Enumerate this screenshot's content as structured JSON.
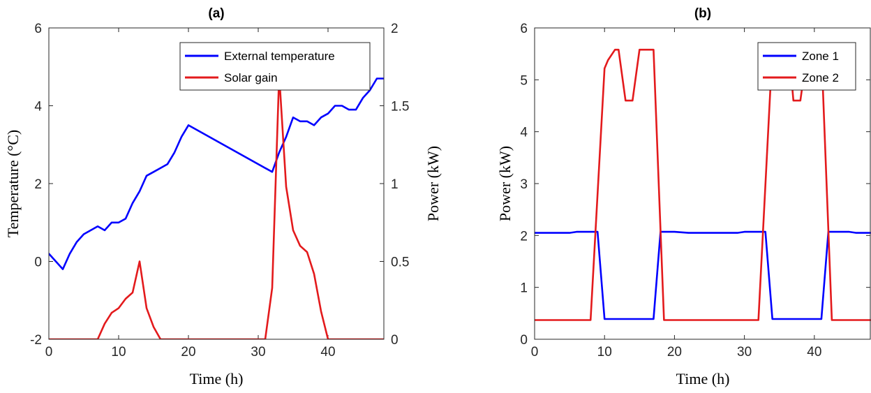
{
  "chart_data": [
    {
      "type": "line",
      "title": "(a)",
      "xlabel": "Time (h)",
      "ylabel_left": "Temperature (°C)",
      "ylabel_right": "Power (kW)",
      "xlim": [
        0,
        48
      ],
      "ylim_left": [
        -2,
        6
      ],
      "ylim_right": [
        0,
        2
      ],
      "xticks": [
        "0",
        "10",
        "20",
        "30",
        "40"
      ],
      "yticks_left": [
        "-2",
        "0",
        "2",
        "4",
        "6"
      ],
      "yticks_right": [
        "0",
        "0.5",
        "1",
        "1.5",
        "2"
      ],
      "legend_position": "top-right",
      "series": [
        {
          "name": "External temperature",
          "axis": "left",
          "color": "#0000ff",
          "x": [
            0,
            1,
            2,
            3,
            4,
            5,
            6,
            7,
            8,
            9,
            10,
            11,
            12,
            13,
            14,
            15,
            16,
            17,
            18,
            19,
            20,
            32,
            33,
            34,
            35,
            36,
            37,
            38,
            39,
            40,
            41,
            42,
            43,
            44,
            45,
            46,
            47,
            48
          ],
          "y": [
            0.2,
            0.0,
            -0.2,
            0.2,
            0.5,
            0.7,
            0.8,
            0.9,
            0.8,
            1.0,
            1.0,
            1.1,
            1.5,
            1.8,
            2.2,
            2.3,
            2.4,
            2.5,
            2.8,
            3.2,
            3.5,
            2.3,
            2.8,
            3.2,
            3.7,
            3.6,
            3.6,
            3.5,
            3.7,
            3.8,
            4.0,
            4.0,
            3.9,
            3.9,
            4.2,
            4.4,
            4.7,
            4.7
          ]
        },
        {
          "name": "Solar gain",
          "axis": "right",
          "color": "#e31a1c",
          "x": [
            0,
            7,
            8,
            9,
            10,
            11,
            12,
            13,
            14,
            15,
            16,
            31,
            32,
            33,
            34,
            35,
            36,
            37,
            38,
            39,
            40,
            48
          ],
          "y": [
            0,
            0,
            0.1,
            0.17,
            0.2,
            0.26,
            0.3,
            0.5,
            0.2,
            0.08,
            0,
            0,
            0.33,
            1.7,
            0.98,
            0.7,
            0.6,
            0.56,
            0.42,
            0.18,
            0,
            0
          ]
        }
      ]
    },
    {
      "type": "line",
      "title": "(b)",
      "xlabel": "Time (h)",
      "ylabel": "Power (kW)",
      "xlim": [
        0,
        48
      ],
      "ylim": [
        0,
        6
      ],
      "xticks": [
        "0",
        "10",
        "20",
        "30",
        "40"
      ],
      "yticks": [
        "0",
        "1",
        "2",
        "3",
        "4",
        "5",
        "6"
      ],
      "legend_position": "top-right",
      "series": [
        {
          "name": "Zone 1",
          "color": "#0000ff",
          "x": [
            0,
            5,
            6,
            9,
            10,
            17,
            18,
            20,
            22,
            29,
            30,
            33,
            34,
            41,
            42,
            45,
            46,
            48
          ],
          "y": [
            2.05,
            2.05,
            2.07,
            2.07,
            0.39,
            0.39,
            2.07,
            2.07,
            2.05,
            2.05,
            2.07,
            2.07,
            0.39,
            0.39,
            2.07,
            2.07,
            2.05,
            2.05
          ]
        },
        {
          "name": "Zone 2",
          "color": "#e31a1c",
          "x": [
            0,
            8,
            10,
            10.5,
            11.5,
            12,
            13,
            14,
            15,
            16,
            17,
            18.5,
            32,
            34,
            35.5,
            36.5,
            37,
            38,
            39,
            41,
            42.5,
            48
          ],
          "y": [
            0.37,
            0.37,
            5.22,
            5.38,
            5.58,
            5.58,
            4.6,
            4.6,
            5.58,
            5.58,
            5.58,
            0.37,
            0.37,
            5.58,
            5.58,
            5.38,
            4.6,
            4.6,
            5.58,
            5.58,
            0.37,
            0.37
          ]
        }
      ]
    }
  ]
}
